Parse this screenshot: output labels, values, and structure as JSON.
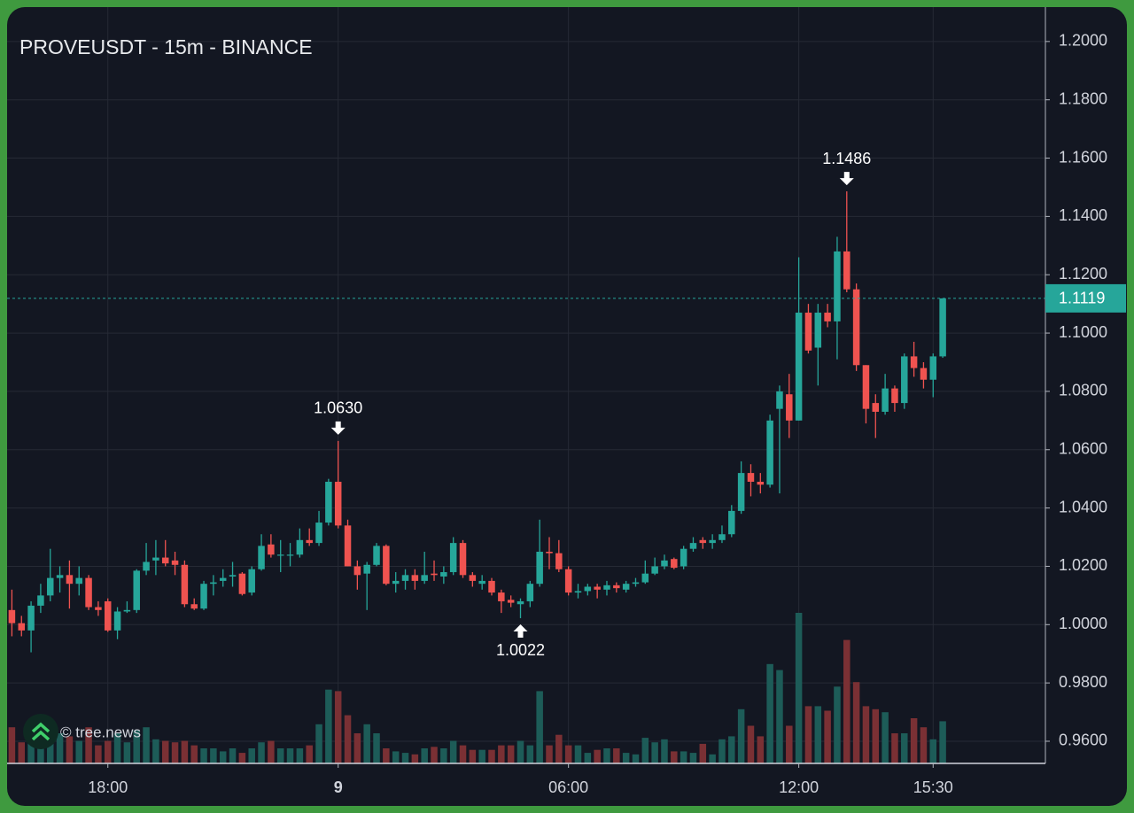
{
  "chart_data": {
    "type": "candlestick",
    "title": "PROVEUSDT - 15m - BINANCE",
    "watermark": "© tree.news",
    "up_color": "#26a69a",
    "down_color": "#ef5350",
    "volume_up_color": "#1d5c58",
    "volume_down_color": "#7a3034",
    "open": [
      1.005,
      1.0005,
      0.998,
      1.0065,
      1.01,
      1.016,
      1.017,
      1.014,
      1.016,
      1.006,
      1.008,
      0.998,
      1.0045,
      1.005,
      1.0185,
      1.022,
      1.023,
      1.022,
      1.0205,
      1.007,
      1.0055,
      1.014,
      1.015,
      1.0165,
      1.0175,
      1.011,
      1.019,
      1.0275,
      1.024,
      1.024,
      1.024,
      1.029,
      1.028,
      1.035,
      1.049,
      1.034,
      1.02,
      1.0175,
      1.0205,
      1.027,
      1.014,
      1.015,
      1.017,
      1.015,
      1.0175,
      1.0165,
      1.018,
      1.028,
      1.017,
      1.014,
      1.015,
      1.011,
      1.0085,
      1.007,
      1.008,
      1.014,
      1.025,
      1.0245,
      1.019,
      1.011,
      1.0115,
      1.013,
      1.012,
      1.0135,
      1.012,
      1.014,
      1.0145,
      1.0175,
      1.02,
      1.0225,
      1.02,
      1.026,
      1.029,
      1.028,
      1.029,
      1.031,
      1.039,
      1.052,
      1.049,
      1.048,
      1.074,
      1.079,
      1.07,
      1.107,
      1.095,
      1.107,
      1.104,
      1.128,
      1.115,
      1.089,
      1.076,
      1.073,
      1.081,
      1.076,
      1.092,
      1.088,
      1.084,
      1.092
    ],
    "high": [
      1.012,
      1.003,
      1.008,
      1.014,
      1.026,
      1.02,
      1.022,
      1.02,
      1.017,
      1.008,
      1.009,
      1.006,
      1.008,
      1.019,
      1.028,
      1.029,
      1.029,
      1.025,
      1.022,
      1.009,
      1.015,
      1.017,
      1.019,
      1.0215,
      1.018,
      1.02,
      1.031,
      1.031,
      1.029,
      1.028,
      1.033,
      1.033,
      1.039,
      1.05,
      1.063,
      1.036,
      1.022,
      1.0215,
      1.028,
      1.0275,
      1.018,
      1.019,
      1.019,
      1.025,
      1.022,
      1.02,
      1.03,
      1.029,
      1.018,
      1.017,
      1.016,
      1.012,
      1.01,
      1.009,
      1.015,
      1.036,
      1.03,
      1.029,
      1.02,
      1.014,
      1.014,
      1.014,
      1.015,
      1.0145,
      1.015,
      1.016,
      1.022,
      1.023,
      1.024,
      1.023,
      1.027,
      1.03,
      1.03,
      1.031,
      1.034,
      1.041,
      1.056,
      1.055,
      1.052,
      1.072,
      1.082,
      1.086,
      1.126,
      1.11,
      1.11,
      1.11,
      1.133,
      1.1486,
      1.117,
      1.089,
      1.079,
      1.086,
      1.082,
      1.093,
      1.097,
      1.09,
      1.093,
      1.1119
    ],
    "low": [
      0.996,
      0.996,
      0.9905,
      1.004,
      1.008,
      1.011,
      1.0055,
      1.01,
      1.005,
      1.003,
      0.9975,
      0.995,
      1.004,
      1.004,
      1.017,
      1.017,
      1.02,
      1.017,
      1.006,
      1.005,
      1.005,
      1.01,
      1.013,
      1.013,
      1.01,
      1.01,
      1.0185,
      1.023,
      1.018,
      1.02,
      1.023,
      1.027,
      1.027,
      1.034,
      1.033,
      1.02,
      1.012,
      1.005,
      1.02,
      1.0135,
      1.011,
      1.012,
      1.012,
      1.014,
      1.015,
      1.014,
      1.017,
      1.016,
      1.013,
      1.012,
      1.01,
      1.004,
      1.006,
      1.0022,
      1.006,
      1.013,
      1.019,
      1.018,
      1.01,
      1.009,
      1.01,
      1.009,
      1.01,
      1.011,
      1.011,
      1.013,
      1.014,
      1.017,
      1.019,
      1.019,
      1.019,
      1.025,
      1.026,
      1.026,
      1.028,
      1.03,
      1.038,
      1.044,
      1.045,
      1.047,
      1.045,
      1.064,
      1.07,
      1.093,
      1.082,
      1.102,
      1.091,
      1.114,
      1.087,
      1.069,
      1.064,
      1.072,
      1.073,
      1.074,
      1.085,
      1.081,
      1.078,
      1.0915
    ],
    "close": [
      1.0005,
      0.998,
      1.0065,
      1.01,
      1.016,
      1.017,
      1.014,
      1.016,
      1.006,
      1.005,
      0.998,
      1.0045,
      1.005,
      1.0185,
      1.0215,
      1.023,
      1.021,
      1.0205,
      1.007,
      1.0055,
      1.014,
      1.0145,
      1.016,
      1.017,
      1.0105,
      1.019,
      1.027,
      1.024,
      1.024,
      1.024,
      1.029,
      1.028,
      1.035,
      1.049,
      1.034,
      1.02,
      1.017,
      1.0205,
      1.027,
      1.014,
      1.015,
      1.017,
      1.015,
      1.017,
      1.017,
      1.018,
      1.028,
      1.017,
      1.015,
      1.015,
      1.011,
      1.008,
      1.0075,
      1.008,
      1.014,
      1.025,
      1.0245,
      1.019,
      1.011,
      1.0115,
      1.013,
      1.012,
      1.0135,
      1.0125,
      1.014,
      1.0145,
      1.0175,
      1.02,
      1.022,
      1.0195,
      1.026,
      1.028,
      1.028,
      1.029,
      1.031,
      1.039,
      1.052,
      1.049,
      1.048,
      1.07,
      1.08,
      1.07,
      1.107,
      1.094,
      1.107,
      1.104,
      1.128,
      1.115,
      1.089,
      1.074,
      1.073,
      1.081,
      1.076,
      1.092,
      1.088,
      1.084,
      1.092,
      1.1119
    ],
    "volume": [
      24,
      14,
      20,
      15,
      22,
      20,
      18,
      15,
      24,
      12,
      15,
      20,
      14,
      22,
      24,
      16,
      15,
      14,
      15,
      12,
      10,
      10,
      8,
      10,
      7,
      10,
      14,
      15,
      10,
      10,
      10,
      12,
      26,
      49,
      48,
      32,
      20,
      26,
      20,
      10,
      8,
      7,
      6,
      10,
      11,
      10,
      15,
      12,
      9,
      9,
      9,
      12,
      12,
      15,
      12,
      48,
      12,
      19,
      12,
      12,
      7,
      9,
      10,
      10,
      7,
      6,
      17,
      14,
      16,
      8,
      8,
      7,
      13,
      6,
      16,
      18,
      36,
      25,
      18,
      66,
      62,
      25,
      100,
      38,
      38,
      35,
      51,
      82,
      54,
      38,
      36,
      34,
      20,
      20,
      30,
      24,
      16,
      28
    ],
    "volume_lim": [
      0,
      100
    ],
    "xlim": [
      -0.5,
      107.7
    ],
    "xticks": [
      {
        "value": 10,
        "label": "18:00"
      },
      {
        "value": 34,
        "label": "9"
      },
      {
        "value": 58,
        "label": "06:00"
      },
      {
        "value": 82,
        "label": "12:00"
      },
      {
        "value": 96,
        "label": "15:30"
      }
    ],
    "ylim": [
      0.9524,
      1.2118
    ],
    "yticks": [
      {
        "value": 1.2,
        "label": "1.2000"
      },
      {
        "value": 1.18,
        "label": "1.1800"
      },
      {
        "value": 1.16,
        "label": "1.1600"
      },
      {
        "value": 1.14,
        "label": "1.1400"
      },
      {
        "value": 1.12,
        "label": "1.1200"
      },
      {
        "value": 1.1,
        "label": "1.1000"
      },
      {
        "value": 1.08,
        "label": "1.0800"
      },
      {
        "value": 1.06,
        "label": "1.0600"
      },
      {
        "value": 1.04,
        "label": "1.0400"
      },
      {
        "value": 1.02,
        "label": "1.0200"
      },
      {
        "value": 1.0,
        "label": "1.0000"
      },
      {
        "value": 0.98,
        "label": "0.9800"
      },
      {
        "value": 0.96,
        "label": "0.9600"
      }
    ],
    "grid": true,
    "last_price": 1.1119,
    "annotations": [
      {
        "x": 34,
        "value": 1.063,
        "label": "1.0630",
        "direction": "down"
      },
      {
        "x": 53,
        "value": 1.0022,
        "label": "1.0022",
        "direction": "up"
      },
      {
        "x": 87,
        "value": 1.1486,
        "label": "1.1486",
        "direction": "down"
      }
    ]
  }
}
